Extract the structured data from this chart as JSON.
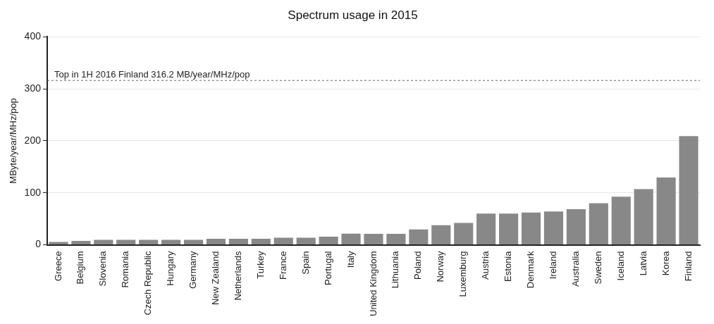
{
  "chart_data": {
    "type": "bar",
    "title": "Spectrum usage in 2015",
    "ylabel": "MByte/year/MHz/pop",
    "categories": [
      "Greece",
      "Belgium",
      "Slovenia",
      "Romania",
      "Czech Republic",
      "Hungary",
      "Germany",
      "New Zealand",
      "Netherlands",
      "Turkey",
      "France",
      "Spain",
      "Portugal",
      "Italy",
      "United Kingdom",
      "Lithuania",
      "Poland",
      "Norway",
      "Luxemburg",
      "Austria",
      "Estonia",
      "Denmark",
      "Ireland",
      "Australia",
      "Sweden",
      "Iceland",
      "Latvia",
      "Korea",
      "Finland"
    ],
    "values": [
      5.5,
      7.5,
      9.5,
      9.5,
      9.5,
      9.5,
      9.5,
      11.5,
      11.5,
      11.5,
      13.5,
      13.5,
      15.5,
      21.5,
      21,
      21,
      29.5,
      37.5,
      42,
      60,
      60,
      62,
      64,
      68.5,
      80,
      92.5,
      107,
      129.5,
      209
    ],
    "color": "#888888",
    "ylim": [
      0,
      400
    ],
    "yticks": [
      0,
      100,
      200,
      300,
      400
    ],
    "grid": "y",
    "ref_lines": [
      {
        "axis": "y",
        "value": 316.2,
        "label": "Top in 1H 2016 Finland 316.2 MB/year/MHz/pop",
        "color": "#666666",
        "line_style": "dashed"
      }
    ]
  }
}
